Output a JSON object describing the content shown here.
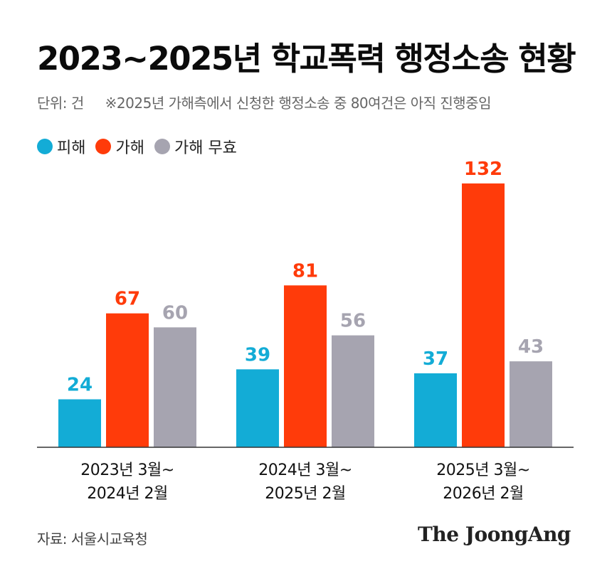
{
  "title": "2023~2025년 학교폭력 행정소송 현황",
  "unit_label": "단위: 건",
  "note": "※2025년 가해측에서 신청한 행정소송 중 80여건은 아직 진행중임",
  "source": "자료: 서울시교육청",
  "brand": "The JoongAng",
  "chart_data": {
    "type": "bar",
    "categories": [
      [
        "2023년 3월~",
        "2024년 2월"
      ],
      [
        "2024년 3월~",
        "2025년 2월"
      ],
      [
        "2025년 3월~",
        "2026년 2월"
      ]
    ],
    "series": [
      {
        "name": "피해",
        "color": "#13acd6",
        "values": [
          24,
          39,
          37
        ]
      },
      {
        "name": "가해",
        "color": "#ff3b0a",
        "values": [
          67,
          81,
          132
        ]
      },
      {
        "name": "가해 무효",
        "color": "#a6a4b0",
        "values": [
          60,
          56,
          43
        ]
      }
    ],
    "ylim": [
      0,
      132
    ],
    "grid": false,
    "data_labels": true,
    "legend_position": "top-left"
  }
}
